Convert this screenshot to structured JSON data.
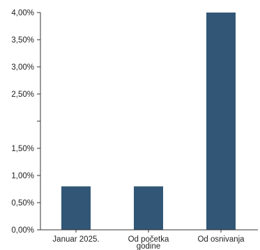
{
  "chart_data": {
    "type": "bar",
    "title": "",
    "xlabel": "",
    "ylabel": "",
    "categories": [
      [
        "Januar 2025."
      ],
      [
        "Od početka",
        "godine"
      ],
      [
        "Od osnivanja"
      ]
    ],
    "values": [
      0.8,
      0.8,
      4.0
    ],
    "ylim": [
      0,
      4.0
    ],
    "yticks": [
      {
        "value": 0.0,
        "label": "0,00%"
      },
      {
        "value": 0.5,
        "label": "0,50%"
      },
      {
        "value": 1.0,
        "label": "1,00%"
      },
      {
        "value": 1.5,
        "label": "1,50%"
      },
      {
        "value": 2.0,
        "label": ""
      },
      {
        "value": 2.5,
        "label": "2,50%"
      },
      {
        "value": 3.0,
        "label": "3,00%"
      },
      {
        "value": 3.5,
        "label": "3,50%"
      },
      {
        "value": 4.0,
        "label": "4,00%"
      }
    ],
    "grid": false,
    "legend": "none",
    "bar_color": "#325776",
    "axis_color": "#333333"
  }
}
